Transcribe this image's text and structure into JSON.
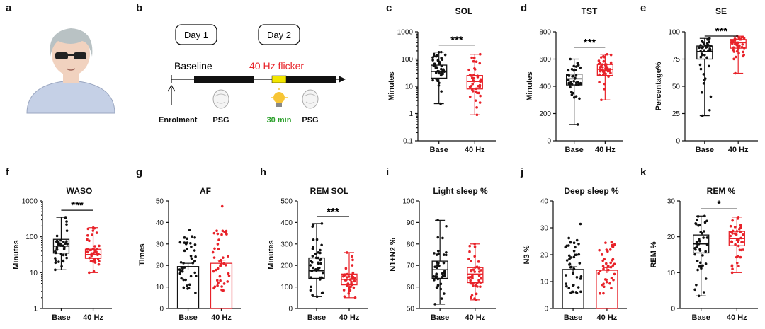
{
  "colors": {
    "base": "#111111",
    "hz40": "#e8232a",
    "flicker_text": "#e8232a",
    "min_text": "#2ca02c",
    "yellow": "#f2e600",
    "person_shirt": "#c5d0e6",
    "person_hair": "#b9c2c4",
    "person_skin": "#f1d2bf"
  },
  "panel_a": {
    "label": "a"
  },
  "panel_b": {
    "label": "b",
    "day1": "Day 1",
    "day2": "Day 2",
    "baseline": "Baseline",
    "flicker": "40 Hz flicker",
    "enrolment": "Enrolment",
    "psg1": "PSG",
    "min30": "30 min",
    "psg2": "PSG",
    "icons": [
      "person-icon",
      "brain-head-icon",
      "lightbulb-icon"
    ]
  },
  "chart_data": [
    {
      "id": "c",
      "label": "c",
      "type": "box",
      "title": "SOL",
      "ylabel": "Minutes",
      "scale": "log",
      "ylim": [
        0.1,
        1000
      ],
      "yticks": [
        "0.1",
        "1",
        "10",
        "100",
        "1000"
      ],
      "yticks_val": [
        0.1,
        1,
        10,
        100,
        1000
      ],
      "categories": [
        "Base",
        "40 Hz"
      ],
      "sig": "***",
      "series": [
        {
          "min": 2.3,
          "q1": 20,
          "median": 35,
          "q3": 60,
          "max": 180
        },
        {
          "min": 0.9,
          "q1": 8,
          "median": 15,
          "q3": 25,
          "max": 150
        }
      ]
    },
    {
      "id": "d",
      "label": "d",
      "type": "box",
      "title": "TST",
      "ylabel": "Minutes",
      "scale": "linear",
      "ylim": [
        0,
        800
      ],
      "yticks": [
        "0",
        "200",
        "400",
        "600",
        "800"
      ],
      "yticks_val": [
        0,
        200,
        400,
        600,
        800
      ],
      "categories": [
        "Base",
        "40 Hz"
      ],
      "sig": "***",
      "series": [
        {
          "min": 120,
          "q1": 410,
          "median": 455,
          "q3": 490,
          "max": 600
        },
        {
          "min": 300,
          "q1": 480,
          "median": 525,
          "q3": 560,
          "max": 635
        }
      ]
    },
    {
      "id": "e",
      "label": "e",
      "type": "box",
      "title": "SE",
      "ylabel": "Percentage%",
      "scale": "linear",
      "ylim": [
        0,
        100
      ],
      "yticks": [
        "0",
        "25",
        "50",
        "75",
        "100"
      ],
      "yticks_val": [
        0,
        25,
        50,
        75,
        100
      ],
      "categories": [
        "Base",
        "40 Hz"
      ],
      "sig": "***",
      "series": [
        {
          "min": 23,
          "q1": 75,
          "median": 82,
          "q3": 87,
          "max": 94
        },
        {
          "min": 62,
          "q1": 85,
          "median": 90,
          "q3": 93,
          "max": 96
        }
      ]
    },
    {
      "id": "f",
      "label": "f",
      "type": "box",
      "title": "WASO",
      "ylabel": "Minutes",
      "scale": "log",
      "ylim": [
        1,
        1000
      ],
      "yticks": [
        "1",
        "10",
        "100",
        "1000"
      ],
      "yticks_val": [
        1,
        10,
        100,
        1000
      ],
      "categories": [
        "Base",
        "40 Hz"
      ],
      "sig": "***",
      "series": [
        {
          "min": 12,
          "q1": 35,
          "median": 55,
          "q3": 85,
          "max": 350
        },
        {
          "min": 10,
          "q1": 25,
          "median": 32,
          "q3": 45,
          "max": 180
        }
      ]
    },
    {
      "id": "g",
      "label": "g",
      "type": "bar",
      "title": "AF",
      "ylabel": "Times",
      "scale": "linear",
      "ylim": [
        0,
        50
      ],
      "yticks": [
        "0",
        "10",
        "20",
        "30",
        "40",
        "50"
      ],
      "yticks_val": [
        0,
        10,
        20,
        30,
        40,
        50
      ],
      "categories": [
        "Base",
        "40 Hz"
      ],
      "sig": "",
      "series": [
        {
          "value": 19.5,
          "err": 1.5
        },
        {
          "value": 21,
          "err": 1.5
        }
      ]
    },
    {
      "id": "h",
      "label": "h",
      "type": "box",
      "title": "REM SOL",
      "ylabel": "Minutes",
      "scale": "linear",
      "ylim": [
        0,
        500
      ],
      "yticks": [
        "0",
        "100",
        "200",
        "300",
        "400",
        "500"
      ],
      "yticks_val": [
        0,
        100,
        200,
        300,
        400,
        500
      ],
      "categories": [
        "Base",
        "40 Hz"
      ],
      "sig": "***",
      "series": [
        {
          "min": 55,
          "q1": 140,
          "median": 175,
          "q3": 235,
          "max": 395
        },
        {
          "min": 50,
          "q1": 110,
          "median": 135,
          "q3": 160,
          "max": 260
        }
      ]
    },
    {
      "id": "i",
      "label": "i",
      "type": "box",
      "title": "Light sleep %",
      "ylabel": "N1+N2 %",
      "scale": "linear",
      "ylim": [
        50,
        100
      ],
      "yticks": [
        "50",
        "60",
        "70",
        "80",
        "90",
        "100"
      ],
      "yticks_val": [
        50,
        60,
        70,
        80,
        90,
        100
      ],
      "categories": [
        "Base",
        "40 Hz"
      ],
      "sig": "",
      "series": [
        {
          "min": 52,
          "q1": 64,
          "median": 68,
          "q3": 72,
          "max": 91
        },
        {
          "min": 54,
          "q1": 62,
          "median": 66,
          "q3": 69,
          "max": 80
        }
      ]
    },
    {
      "id": "j",
      "label": "j",
      "type": "bar",
      "title": "Deep sleep %",
      "ylabel": "N3 %",
      "scale": "linear",
      "ylim": [
        0,
        40
      ],
      "yticks": [
        "0",
        "10",
        "20",
        "30",
        "40"
      ],
      "yticks_val": [
        0,
        10,
        20,
        30,
        40
      ],
      "categories": [
        "Base",
        "40 Hz"
      ],
      "sig": "",
      "series": [
        {
          "value": 14.5,
          "err": 1.0
        },
        {
          "value": 14.2,
          "err": 1.0
        }
      ]
    },
    {
      "id": "k",
      "label": "k",
      "type": "box",
      "title": "REM %",
      "ylabel": "REM %",
      "scale": "linear",
      "ylim": [
        0,
        30
      ],
      "yticks": [
        "0",
        "10",
        "20",
        "30"
      ],
      "yticks_val": [
        0,
        10,
        20,
        30
      ],
      "categories": [
        "Base",
        "40 Hz"
      ],
      "sig": "*",
      "series": [
        {
          "min": 3.5,
          "q1": 15.5,
          "median": 18,
          "q3": 20.5,
          "max": 25.8
        },
        {
          "min": 10,
          "q1": 17.5,
          "median": 19.5,
          "q3": 21.5,
          "max": 25.5
        }
      ]
    }
  ]
}
